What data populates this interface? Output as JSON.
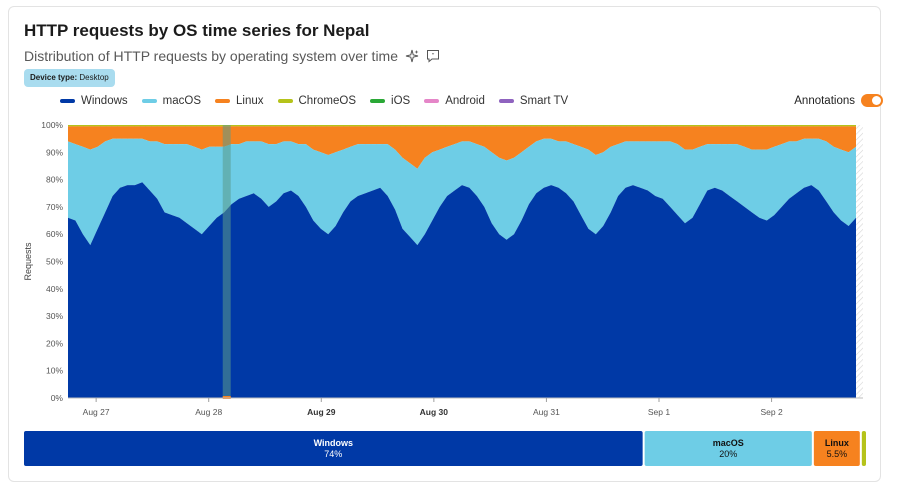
{
  "card": {
    "title": "HTTP requests by OS time series for Nepal",
    "subtitle": "Distribution of HTTP requests by operating system over time",
    "badge_key": "Device type:",
    "badge_value": "Desktop",
    "annotations_label": "Annotations",
    "annotations_on": true,
    "icons": [
      "sparkle-icon",
      "feedback-icon"
    ]
  },
  "colors": {
    "windows": "#0039a6",
    "macos": "#6ecde6",
    "linux": "#f6821f",
    "chromeos": "#b5c31a",
    "ios": "#2aa836",
    "android": "#e586c8",
    "smarttv": "#8f63bf",
    "annotation": "#5a9a8a"
  },
  "chart_data": {
    "type": "area",
    "stacked": true,
    "ylabel": "Requests",
    "y_ticks": [
      "0%",
      "10%",
      "20%",
      "30%",
      "40%",
      "50%",
      "60%",
      "70%",
      "80%",
      "90%",
      "100%"
    ],
    "ylim": [
      0,
      100
    ],
    "x_ticks": [
      {
        "label": "Aug 27",
        "day": 0,
        "bold": false
      },
      {
        "label": "Aug 28",
        "day": 1,
        "bold": false
      },
      {
        "label": "Aug 29",
        "day": 2,
        "bold": true
      },
      {
        "label": "Aug 30",
        "day": 3,
        "bold": true
      },
      {
        "label": "Aug 31",
        "day": 4,
        "bold": false
      },
      {
        "label": "Sep 1",
        "day": 5,
        "bold": false
      },
      {
        "label": "Sep 2",
        "day": 6,
        "bold": false
      }
    ],
    "x_start": -0.25,
    "x_end": 6.75,
    "annotation_day": 1.16,
    "legend": [
      "Windows",
      "macOS",
      "Linux",
      "ChromeOS",
      "iOS",
      "Android",
      "Smart TV"
    ],
    "series": [
      {
        "name": "Windows",
        "values": [
          66,
          65,
          60,
          56,
          62,
          68,
          74,
          77,
          78,
          78,
          79,
          76,
          73,
          68,
          67,
          66,
          64,
          62,
          60,
          63,
          66,
          68,
          71,
          73,
          74,
          75,
          73,
          70,
          72,
          75,
          76,
          74,
          70,
          65,
          62,
          60,
          63,
          68,
          72,
          74,
          75,
          76,
          77,
          74,
          69,
          62,
          59,
          56,
          60,
          65,
          70,
          74,
          76,
          78,
          77,
          74,
          70,
          64,
          60,
          58,
          60,
          65,
          71,
          75,
          77,
          78,
          77,
          75,
          72,
          67,
          62,
          60,
          63,
          68,
          74,
          77,
          78,
          77,
          76,
          74,
          73,
          70,
          67,
          64,
          66,
          71,
          76,
          77,
          76,
          74,
          72,
          70,
          68,
          66,
          65,
          67,
          70,
          73,
          75,
          77,
          78,
          76,
          72,
          68,
          65,
          63,
          66
        ],
        "color_key": "windows"
      },
      {
        "name": "macOS",
        "values": [
          28,
          28,
          32,
          35,
          30,
          26,
          21,
          18,
          17,
          17,
          16,
          18,
          21,
          25,
          26,
          27,
          29,
          30,
          31,
          29,
          26,
          24,
          22,
          20,
          20,
          19,
          21,
          23,
          21,
          19,
          18,
          19,
          23,
          26,
          28,
          29,
          27,
          23,
          20,
          19,
          18,
          17,
          16,
          19,
          22,
          26,
          27,
          28,
          28,
          25,
          21,
          18,
          17,
          16,
          17,
          19,
          22,
          26,
          28,
          29,
          28,
          25,
          21,
          19,
          18,
          17,
          17,
          19,
          21,
          25,
          29,
          29,
          27,
          24,
          19,
          17,
          16,
          17,
          18,
          20,
          21,
          24,
          26,
          27,
          25,
          21,
          17,
          16,
          17,
          19,
          21,
          22,
          23,
          25,
          26,
          25,
          23,
          21,
          19,
          18,
          17,
          19,
          22,
          24,
          26,
          27,
          26
        ],
        "color_key": "macos"
      },
      {
        "name": "Linux",
        "values": [
          5.5,
          6.5,
          7.5,
          8.5,
          7.5,
          5.5,
          4.5,
          4.5,
          4.5,
          4.5,
          4.5,
          5.5,
          5.5,
          6.5,
          6.5,
          6.5,
          6.5,
          7.5,
          8.5,
          7.5,
          7.5,
          7.5,
          6.5,
          6.5,
          5.5,
          5.5,
          5.5,
          6.5,
          6.5,
          5.5,
          5.5,
          6.5,
          6.5,
          8.5,
          9.5,
          10.5,
          9.5,
          8.5,
          7.5,
          6.5,
          6.5,
          6.5,
          6.5,
          6.5,
          8.5,
          11.5,
          13.5,
          15.5,
          11.5,
          9.5,
          8.5,
          7.5,
          6.5,
          5.5,
          5.5,
          6.5,
          7.5,
          9.5,
          11.5,
          12.5,
          11.5,
          9.5,
          7.5,
          5.5,
          4.5,
          4.5,
          5.5,
          5.5,
          6.5,
          7.5,
          8.5,
          10.5,
          9.5,
          7.5,
          6.5,
          5.5,
          5.5,
          5.5,
          5.5,
          5.5,
          5.5,
          5.5,
          6.5,
          8.5,
          8.5,
          7.5,
          6.5,
          6.5,
          6.5,
          6.5,
          6.5,
          7.5,
          8.5,
          8.5,
          8.5,
          7.5,
          6.5,
          5.5,
          5.5,
          4.5,
          4.5,
          4.5,
          5.5,
          7.5,
          8.5,
          9.5,
          7.5
        ],
        "color_key": "linux"
      },
      {
        "name": "ChromeOS",
        "values": [
          0.4
        ],
        "color_key": "chromeos"
      },
      {
        "name": "iOS",
        "values": [
          0.1
        ],
        "color_key": "ios"
      },
      {
        "name": "Android",
        "values": [
          0.0
        ],
        "color_key": "android"
      },
      {
        "name": "Smart TV",
        "values": [
          0.0
        ],
        "color_key": "smarttv"
      }
    ],
    "summary": [
      {
        "name": "Windows",
        "share": 74,
        "label": "74%",
        "color_key": "windows"
      },
      {
        "name": "macOS",
        "share": 20,
        "label": "20%",
        "color_key": "macos"
      },
      {
        "name": "Linux",
        "share": 5.5,
        "label": "5.5%",
        "color_key": "linux"
      },
      {
        "name": "ChromeOS",
        "share": 0.5,
        "label": "",
        "color_key": "chromeos"
      }
    ]
  }
}
